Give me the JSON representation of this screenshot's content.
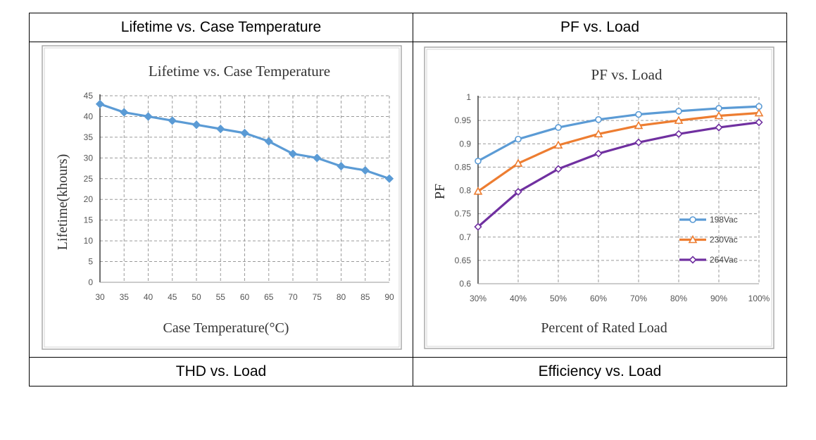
{
  "table": {
    "row1": [
      "Lifetime vs. Case Temperature",
      "PF vs. Load"
    ],
    "row2": [
      "THD vs. Load",
      "Efficiency vs. Load"
    ]
  },
  "chart_data": [
    {
      "type": "line",
      "title": "Lifetime vs. Case Temperature",
      "xlabel": "Case Temperature(°C)",
      "ylabel": "Lifetime(khours)",
      "categories": [
        "30",
        "35",
        "40",
        "45",
        "50",
        "55",
        "60",
        "65",
        "70",
        "75",
        "80",
        "85",
        "90"
      ],
      "series": [
        {
          "name": "Lifetime",
          "color": "#5b9bd5",
          "values": [
            43,
            41,
            40,
            39,
            38,
            37,
            36,
            34,
            31,
            30,
            28,
            27,
            25
          ]
        }
      ],
      "ylim": [
        0,
        45
      ],
      "yticks": [
        "0",
        "5",
        "10",
        "15",
        "20",
        "25",
        "30",
        "35",
        "40",
        "45"
      ],
      "grid": true,
      "legend": "none"
    },
    {
      "type": "line",
      "title": "PF vs. Load",
      "xlabel": "Percent of Rated Load",
      "ylabel": "PF",
      "categories": [
        "30%",
        "40%",
        "50%",
        "60%",
        "70%",
        "80%",
        "90%",
        "100%"
      ],
      "series": [
        {
          "name": "198Vac",
          "color": "#5b9bd5",
          "marker": "circle",
          "values": [
            0.863,
            0.91,
            0.935,
            0.952,
            0.963,
            0.97,
            0.976,
            0.98
          ]
        },
        {
          "name": "230Vac",
          "color": "#ed7d31",
          "marker": "triangle",
          "values": [
            0.798,
            0.858,
            0.897,
            0.921,
            0.939,
            0.95,
            0.96,
            0.966
          ]
        },
        {
          "name": "264Vac",
          "color": "#7030a0",
          "marker": "diamond",
          "values": [
            0.722,
            0.797,
            0.846,
            0.879,
            0.903,
            0.921,
            0.935,
            0.946
          ]
        }
      ],
      "ylim": [
        0.6,
        1
      ],
      "yticks": [
        "0.6",
        "0.65",
        "0.7",
        "0.75",
        "0.8",
        "0.85",
        "0.9",
        "0.95",
        "1"
      ],
      "grid": true,
      "legend": "right"
    }
  ]
}
